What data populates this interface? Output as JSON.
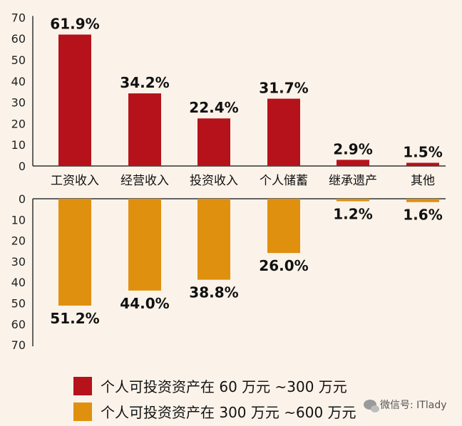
{
  "chart_data": {
    "type": "bar",
    "categories": [
      "工资收入",
      "经营收入",
      "投资收入",
      "个人储蓄",
      "继承遗产",
      "其他"
    ],
    "series": [
      {
        "name": "个人可投资资产在 60 万元 ~300 万元",
        "values": [
          61.9,
          34.2,
          22.4,
          31.7,
          2.9,
          1.5
        ],
        "labels": [
          "61.9%",
          "34.2%",
          "22.4%",
          "31.7%",
          "2.9%",
          "1.5%"
        ],
        "color": "#b5121b",
        "direction": "up"
      },
      {
        "name": "个人可投资资产在 300 万元 ~600 万元",
        "values": [
          51.2,
          44.0,
          38.8,
          26.0,
          1.2,
          1.6
        ],
        "labels": [
          "51.2%",
          "44.0%",
          "38.8%",
          "26.0%",
          "1.2%",
          "1.6%"
        ],
        "color": "#e0900f",
        "direction": "down"
      }
    ],
    "top_axis": {
      "ylim": [
        0,
        70
      ],
      "ticks": [
        "0",
        "10",
        "20",
        "30",
        "40",
        "50",
        "60",
        "70"
      ]
    },
    "bottom_axis": {
      "ylim": [
        0,
        70
      ],
      "ticks": [
        "0",
        "10",
        "20",
        "30",
        "40",
        "50",
        "60",
        "70"
      ]
    },
    "legend_position": "bottom-left",
    "grid": false
  },
  "watermark": {
    "text": "微信号: ITlady",
    "icon": "wechat-icon"
  }
}
